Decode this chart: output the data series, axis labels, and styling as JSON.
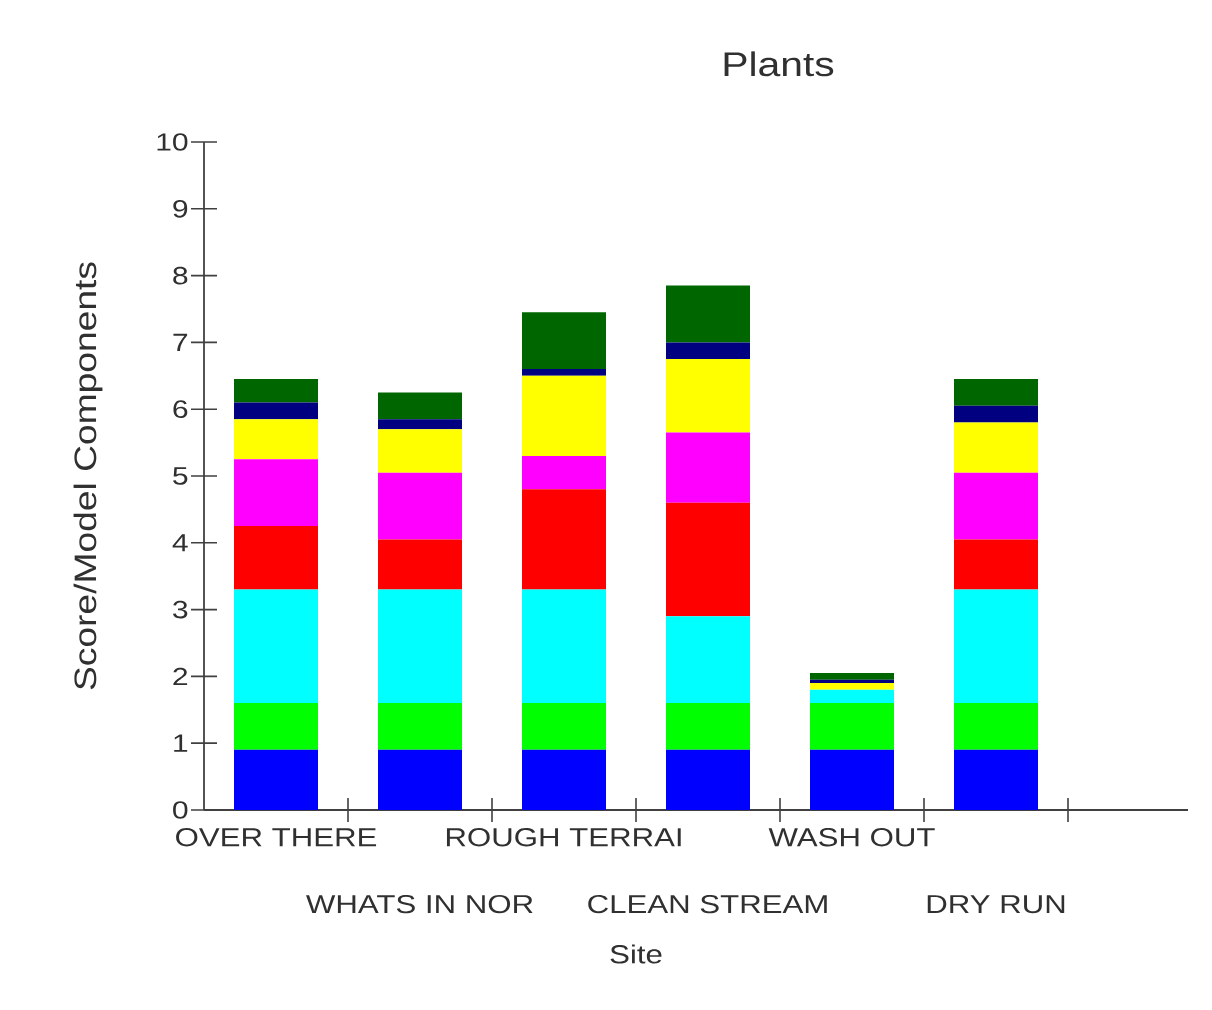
{
  "chart_data": {
    "type": "bar",
    "stacked": true,
    "title": "Plants",
    "xlabel": "Site",
    "ylabel": "Score/Model Components",
    "categories": [
      "OVER THERE",
      "WHATS IN NOR",
      "ROUGH TERRAI",
      "CLEAN STREAM",
      "WASH OUT",
      "DRY RUN"
    ],
    "ylim": [
      0,
      10
    ],
    "yticks": [
      0,
      1,
      2,
      3,
      4,
      5,
      6,
      7,
      8,
      9,
      10
    ],
    "series": [
      {
        "color": "#0000ff",
        "values": [
          0.9,
          0.9,
          0.9,
          0.9,
          0.9,
          0.9
        ]
      },
      {
        "color": "#00ff00",
        "values": [
          0.7,
          0.7,
          0.7,
          0.7,
          0.7,
          0.7
        ]
      },
      {
        "color": "#00ffff",
        "values": [
          1.7,
          1.7,
          1.7,
          1.3,
          0.2,
          1.7
        ]
      },
      {
        "color": "#ff0000",
        "values": [
          0.95,
          0.75,
          1.5,
          1.7,
          0,
          0.75
        ]
      },
      {
        "color": "#ff00ff",
        "values": [
          1.0,
          1.0,
          0.5,
          1.05,
          0,
          1.0
        ]
      },
      {
        "color": "#ffff00",
        "values": [
          0.6,
          0.65,
          1.2,
          1.1,
          0.1,
          0.75
        ]
      },
      {
        "color": "#000080",
        "values": [
          0.25,
          0.15,
          0.1,
          0.25,
          0.05,
          0.25
        ]
      },
      {
        "color": "#006600",
        "values": [
          0.35,
          0.4,
          0.85,
          0.85,
          0.1,
          0.4
        ]
      }
    ]
  }
}
